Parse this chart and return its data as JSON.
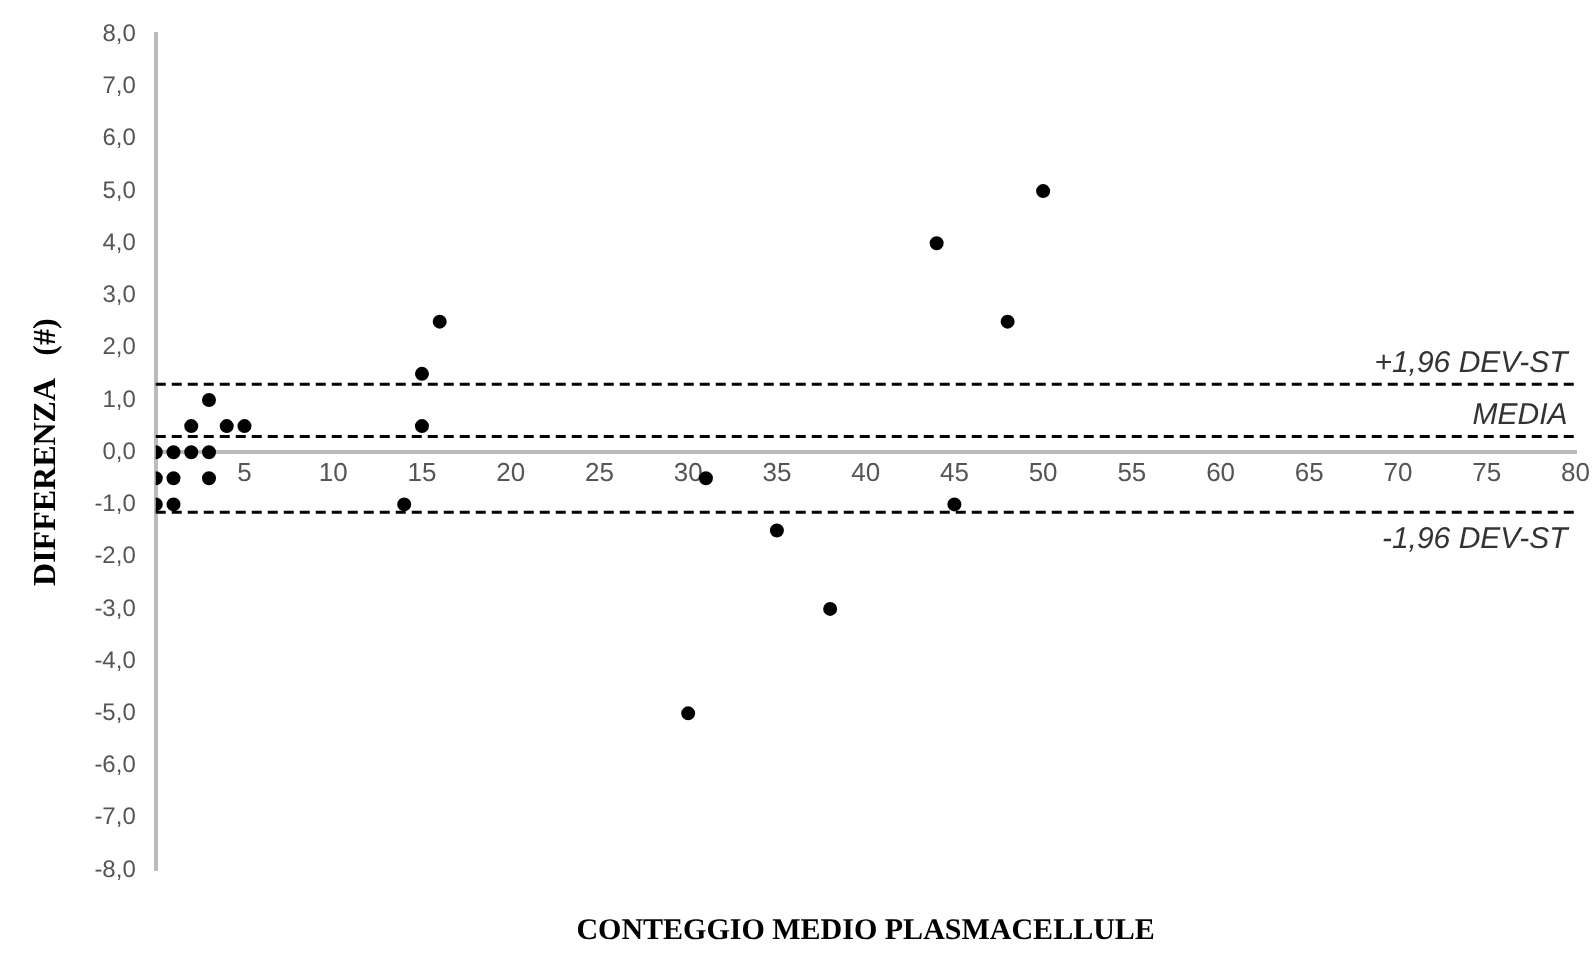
{
  "chart_data": {
    "type": "scatter",
    "xlabel": "CONTEGGIO MEDIO PLASMACELLULE",
    "ylabel": "DIFFERENZA   (#)",
    "x": [
      0,
      1,
      2,
      3,
      2,
      4,
      5,
      3,
      0,
      1,
      3,
      0,
      1,
      15,
      15,
      16,
      14,
      44,
      48,
      31,
      35,
      38,
      30,
      45,
      50
    ],
    "values": [
      0,
      0,
      0,
      0,
      0.5,
      0.5,
      0.5,
      1,
      -0.5,
      -0.5,
      -0.5,
      -1,
      -1,
      1.5,
      0.5,
      2.5,
      -1,
      4,
      2.5,
      -0.5,
      -1.5,
      -3,
      -5,
      -1,
      5
    ],
    "color": "#000000",
    "marker": "circle",
    "grid": false,
    "legend": false,
    "xlim": [
      0,
      80
    ],
    "xticks": [
      5,
      10,
      15,
      20,
      25,
      30,
      35,
      40,
      45,
      50,
      55,
      60,
      65,
      70,
      75,
      80
    ],
    "ylim": [
      -8,
      8
    ],
    "yticks": [
      {
        "value": 8,
        "label": "8,0"
      },
      {
        "value": 7,
        "label": "7,0"
      },
      {
        "value": 6,
        "label": "6,0"
      },
      {
        "value": 5,
        "label": "5,0"
      },
      {
        "value": 4,
        "label": "4,0"
      },
      {
        "value": 3,
        "label": "3,0"
      },
      {
        "value": 2,
        "label": "2,0"
      },
      {
        "value": 1,
        "label": "1,0"
      },
      {
        "value": 0,
        "label": "0,0"
      },
      {
        "value": -1,
        "label": "-1,0"
      },
      {
        "value": -2,
        "label": "-2,0"
      },
      {
        "value": -3,
        "label": "-3,0"
      },
      {
        "value": -4,
        "label": "-4,0"
      },
      {
        "value": -5,
        "label": "-5,0"
      },
      {
        "value": -6,
        "label": "-6,0"
      },
      {
        "value": -7,
        "label": "-7,0"
      },
      {
        "value": -8,
        "label": "-8,0"
      }
    ],
    "ref_lines": [
      {
        "axis": "y",
        "value": 1.3,
        "label": "+1,96 DEV-ST",
        "line_style": "dashed",
        "color": "#000000"
      },
      {
        "axis": "y",
        "value": 0.3,
        "label": "MEDIA",
        "line_style": "dashed",
        "color": "#000000"
      },
      {
        "axis": "y",
        "value": -1.15,
        "label": "-1,96 DEV-ST",
        "line_style": "dashed",
        "color": "#000000"
      }
    ]
  }
}
